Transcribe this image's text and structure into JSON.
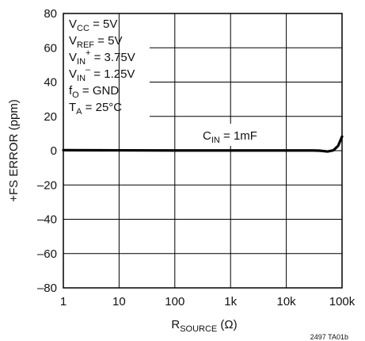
{
  "chart_data": {
    "type": "line",
    "xscale": "log",
    "xlim": [
      1,
      100000
    ],
    "ylim": [
      -80,
      80
    ],
    "grid": true,
    "x_ticks": [
      1,
      10,
      100,
      1000,
      10000,
      100000
    ],
    "x_tick_labels": [
      "1",
      "10",
      "100",
      "1k",
      "10k",
      "100k"
    ],
    "y_ticks": [
      -80,
      -60,
      -40,
      -20,
      0,
      20,
      40,
      60,
      80
    ],
    "y_tick_labels": [
      "–80",
      "–60",
      "–40",
      "–20",
      "0",
      "20",
      "40",
      "60",
      "80"
    ],
    "ylabel": "+FS ERROR (ppm)",
    "xlabel": {
      "main": "R",
      "sub": "SOURCE",
      "unit": " (Ω)"
    },
    "series": [
      {
        "name": "C_IN = 1mF",
        "color": "#000000",
        "x": [
          1,
          10,
          100,
          1000,
          10000,
          30000,
          40000,
          55000,
          70000,
          85000,
          100000
        ],
        "y": [
          0.3,
          0.2,
          0.1,
          0.1,
          0.1,
          0.1,
          0.0,
          -0.5,
          0.2,
          2.8,
          8.2
        ]
      }
    ],
    "series_label": {
      "main": "C",
      "sub": "IN",
      "rest": " = 1mF"
    },
    "conditions": [
      {
        "main": "V",
        "sub": "CC",
        "sup": "",
        "rest": " = 5V"
      },
      {
        "main": "V",
        "sub": "REF",
        "sup": "",
        "rest": " = 5V"
      },
      {
        "main": "V",
        "sub": "IN",
        "sup": "+",
        "rest": " = 3.75V"
      },
      {
        "main": "V",
        "sub": "IN",
        "sup": "–",
        "rest": " = 1.25V"
      },
      {
        "main": "f",
        "sub": "O",
        "sup": "",
        "rest": " = GND"
      },
      {
        "main": "T",
        "sub": "A",
        "sup": "",
        "rest": " = 25°C"
      }
    ],
    "figure_id": "2497 TA01b"
  }
}
